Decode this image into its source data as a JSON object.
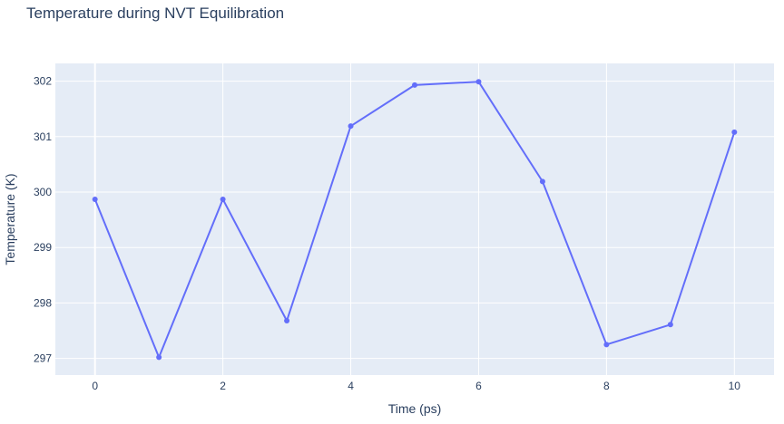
{
  "chart_data": {
    "type": "line",
    "title": "Temperature during NVT Equilibration",
    "xlabel": "Time (ps)",
    "ylabel": "Temperature (K)",
    "x": [
      0,
      1,
      2,
      3,
      4,
      5,
      6,
      7,
      8,
      9,
      10
    ],
    "series": [
      {
        "values": [
          299.87,
          297.02,
          299.87,
          297.68,
          301.19,
          301.93,
          301.99,
          300.19,
          297.25,
          297.61,
          301.08
        ]
      }
    ],
    "xlim": [
      -0.62,
      10.62
    ],
    "ylim": [
      296.7,
      302.32
    ],
    "xticks": [
      0,
      2,
      4,
      6,
      8,
      10
    ],
    "yticks": [
      297,
      298,
      299,
      300,
      301,
      302
    ],
    "grid": true,
    "colors": {
      "line": "#636efa",
      "plot_background": "#e5ecf6",
      "grid": "#ffffff",
      "text": "#2a3f5f"
    }
  }
}
